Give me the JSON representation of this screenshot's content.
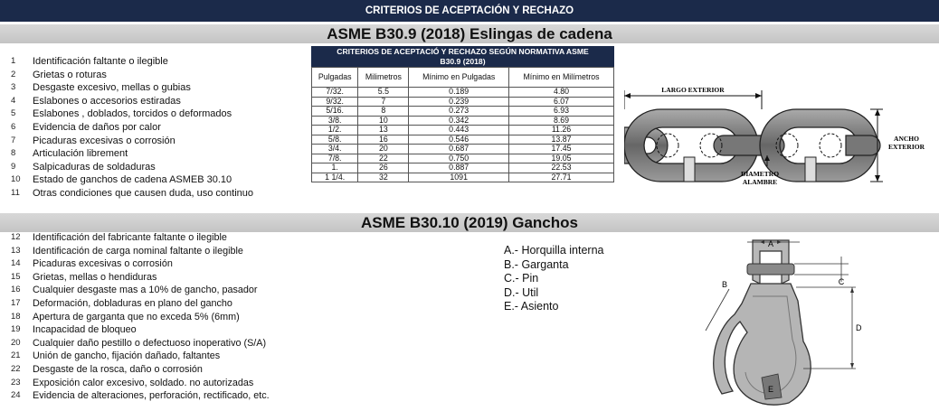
{
  "header": {
    "title": "CRITERIOS DE ACEPTACIÓN Y RECHAZO"
  },
  "section1": {
    "title": "ASME B30.9 (2018) Eslingas de cadena",
    "items": [
      {
        "num": "1",
        "text": "Identificación faltante o ilegible"
      },
      {
        "num": "2",
        "text": "Grietas o roturas"
      },
      {
        "num": "3",
        "text": "Desgaste excesivo, mellas o gubias"
      },
      {
        "num": "4",
        "text": "Eslabones o accesorios estiradas"
      },
      {
        "num": "5",
        "text": "Eslabones , doblados, torcidos o deformados"
      },
      {
        "num": "6",
        "text": "Evidencia de daños por calor"
      },
      {
        "num": "7",
        "text": "Picaduras excesivas o corrosión"
      },
      {
        "num": "8",
        "text": "Articulación librement"
      },
      {
        "num": "9",
        "text": "Salpicaduras de soldaduras"
      },
      {
        "num": "10",
        "text": "Estado de ganchos de cadena ASMEB 30.10"
      },
      {
        "num": "11",
        "text": "Otras condiciones que causen duda, uso continuo"
      }
    ]
  },
  "table": {
    "caption_line1": "CRITERIOS DE ACEPTACIÓ Y RECHAZO SEGÚN NORMATIVA ASME",
    "caption_line2": "B30.9 (2018)",
    "headers": [
      "Pulgadas",
      "Milimetros",
      "Mínimo en Pulgadas",
      "Mínimo en Milímetros"
    ],
    "rows": [
      [
        "7/32.",
        "5.5",
        "0.189",
        "4.80"
      ],
      [
        "9/32.",
        "7",
        "0.239",
        "6.07"
      ],
      [
        "5/16.",
        "8",
        "0.273",
        "6.93"
      ],
      [
        "3/8.",
        "10",
        "0.342",
        "8.69"
      ],
      [
        "1/2.",
        "13",
        "0.443",
        "11.26"
      ],
      [
        "5/8.",
        "16",
        "0.546",
        "13.87"
      ],
      [
        "3/4.",
        "20",
        "0.687",
        "17.45"
      ],
      [
        "7/8.",
        "22",
        "0.750",
        "19.05"
      ],
      [
        "1.",
        "26",
        "0.887",
        "22.53"
      ],
      [
        "1 1/4.",
        "32",
        "1091",
        "27.71"
      ]
    ]
  },
  "chain_diagram": {
    "label_length": "LARGO EXTERIOR",
    "label_width_1": "ANCHO",
    "label_width_2": "EXTERIOR",
    "label_diameter_1": "DIAMETRO",
    "label_diameter_2": "ALAMBRE"
  },
  "section2": {
    "title": "ASME B30.10 (2019) Ganchos",
    "items": [
      {
        "num": "12",
        "text": "Identificación del fabricante faltante o ilegible"
      },
      {
        "num": "13",
        "text": "Identificación de carga nominal faltante o ilegible"
      },
      {
        "num": "14",
        "text": "Picaduras excesivas o corrosión"
      },
      {
        "num": "15",
        "text": "Grietas, mellas o hendiduras"
      },
      {
        "num": "16",
        "text": "Cualquier desgaste  mas a 10% de gancho, pasador"
      },
      {
        "num": "17",
        "text": "Deformación, dobladuras en plano del gancho"
      },
      {
        "num": "18",
        "text": "Apertura de garganta   que no exceda 5% (6mm)"
      },
      {
        "num": "19",
        "text": "Incapacidad de bloqueo"
      },
      {
        "num": "20",
        "text": "Cualquier daño pestillo o defectuoso inoperativo (S/A)"
      },
      {
        "num": "21",
        "text": "Unión de gancho,  fijación dañado, faltantes"
      },
      {
        "num": "22",
        "text": "Desgaste de la rosca, daño o corrosión"
      },
      {
        "num": "23",
        "text": "Exposición calor excesivo, soldado. no autorizadas"
      },
      {
        "num": "24",
        "text": "Evidencia de alteraciones, perforación, rectificado, etc."
      }
    ]
  },
  "hook_legend": [
    "A.- Horquilla interna",
    "B.- Garganta",
    "C.- Pin",
    "D.- Util",
    "E.- Asiento"
  ],
  "hook_diagram": {
    "label_a": "A",
    "label_b": "B",
    "label_c": "C",
    "label_d": "D",
    "label_e": "E"
  }
}
